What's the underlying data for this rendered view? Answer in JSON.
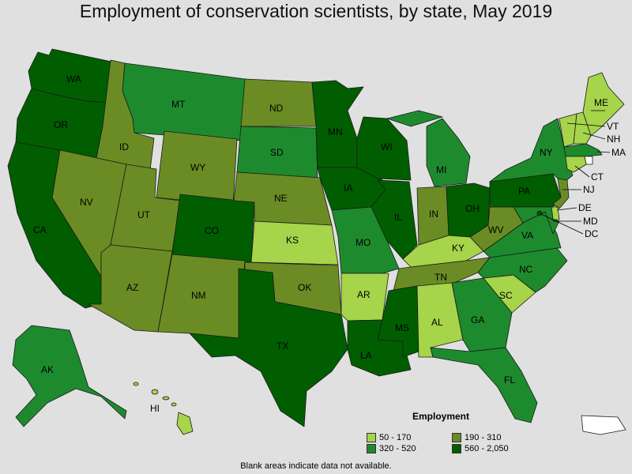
{
  "title": "Employment of conservation scientists, by state, May 2019",
  "legend": {
    "title": "Employment",
    "bins": [
      {
        "label": "50 - 170",
        "color": "#a6d44a"
      },
      {
        "label": "190 - 310",
        "color": "#6b8c24"
      },
      {
        "label": "320 - 520",
        "color": "#1e8a2e"
      },
      {
        "label": "560 - 2,050",
        "color": "#005e00"
      }
    ]
  },
  "footnote": "Blank areas indicate data not available.",
  "states": [
    {
      "abbr": "WA",
      "bin": 3
    },
    {
      "abbr": "OR",
      "bin": 3
    },
    {
      "abbr": "CA",
      "bin": 3
    },
    {
      "abbr": "ID",
      "bin": 1
    },
    {
      "abbr": "NV",
      "bin": 1
    },
    {
      "abbr": "MT",
      "bin": 2
    },
    {
      "abbr": "WY",
      "bin": 1
    },
    {
      "abbr": "UT",
      "bin": 1
    },
    {
      "abbr": "AZ",
      "bin": 1
    },
    {
      "abbr": "CO",
      "bin": 3
    },
    {
      "abbr": "NM",
      "bin": 1
    },
    {
      "abbr": "ND",
      "bin": 1
    },
    {
      "abbr": "SD",
      "bin": 2
    },
    {
      "abbr": "NE",
      "bin": 1
    },
    {
      "abbr": "KS",
      "bin": 0
    },
    {
      "abbr": "OK",
      "bin": 1
    },
    {
      "abbr": "TX",
      "bin": 3
    },
    {
      "abbr": "MN",
      "bin": 3
    },
    {
      "abbr": "IA",
      "bin": 3
    },
    {
      "abbr": "MO",
      "bin": 2
    },
    {
      "abbr": "AR",
      "bin": 0
    },
    {
      "abbr": "LA",
      "bin": 3
    },
    {
      "abbr": "WI",
      "bin": 3
    },
    {
      "abbr": "IL",
      "bin": 3
    },
    {
      "abbr": "MI",
      "bin": 2
    },
    {
      "abbr": "IN",
      "bin": 1
    },
    {
      "abbr": "OH",
      "bin": 3
    },
    {
      "abbr": "KY",
      "bin": 0
    },
    {
      "abbr": "TN",
      "bin": 1
    },
    {
      "abbr": "MS",
      "bin": 3
    },
    {
      "abbr": "AL",
      "bin": 0
    },
    {
      "abbr": "GA",
      "bin": 2
    },
    {
      "abbr": "FL",
      "bin": 2
    },
    {
      "abbr": "SC",
      "bin": 0
    },
    {
      "abbr": "NC",
      "bin": 2
    },
    {
      "abbr": "VA",
      "bin": 2
    },
    {
      "abbr": "WV",
      "bin": 1
    },
    {
      "abbr": "PA",
      "bin": 3
    },
    {
      "abbr": "NY",
      "bin": 2
    },
    {
      "abbr": "ME",
      "bin": 0
    },
    {
      "abbr": "VT",
      "bin": 0
    },
    {
      "abbr": "NH",
      "bin": 0
    },
    {
      "abbr": "MA",
      "bin": 2
    },
    {
      "abbr": "RI",
      "bin": null
    },
    {
      "abbr": "CT",
      "bin": 0
    },
    {
      "abbr": "NJ",
      "bin": 1
    },
    {
      "abbr": "DE",
      "bin": 0
    },
    {
      "abbr": "MD",
      "bin": 2
    },
    {
      "abbr": "DC",
      "bin": 3
    },
    {
      "abbr": "AK",
      "bin": 2
    },
    {
      "abbr": "HI",
      "bin": 0
    },
    {
      "abbr": "PR",
      "bin": null
    }
  ]
}
